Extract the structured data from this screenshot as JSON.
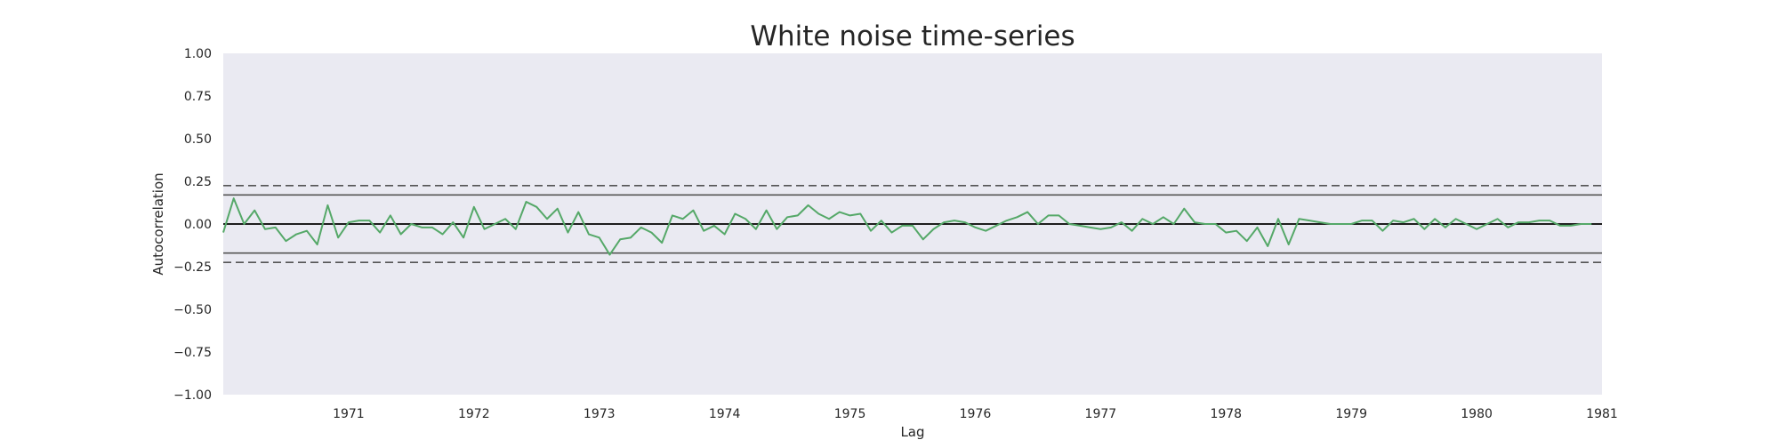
{
  "chart_data": {
    "type": "line",
    "title": "White noise time-series",
    "xlabel": "Lag",
    "ylabel": "Autocorrelation",
    "xlim": [
      1970.0,
      1981.0
    ],
    "ylim": [
      -1.0,
      1.0
    ],
    "x_ticks": [
      1971,
      1972,
      1973,
      1974,
      1975,
      1976,
      1977,
      1978,
      1979,
      1980,
      1981
    ],
    "y_ticks": [
      1.0,
      0.75,
      0.5,
      0.25,
      0.0,
      -0.25,
      -0.5,
      -0.75,
      -1.0
    ],
    "y_tick_labels": [
      "1.00",
      "0.75",
      "0.50",
      "0.25",
      "0.00",
      "−0.25",
      "−0.50",
      "−0.75",
      "−1.00"
    ],
    "grid": false,
    "reference_lines": {
      "zero": 0.0,
      "solid_bounds": [
        0.17,
        -0.17
      ],
      "dashed_bounds": [
        0.225,
        -0.225
      ]
    },
    "colors": {
      "series": "#55a868",
      "background": "#eaeaf2",
      "zero_line": "#000000",
      "bound_line": "#555555"
    },
    "series": [
      {
        "x": [
          "1970-01",
          "1970-02",
          "1970-03",
          "1970-04",
          "1970-05",
          "1970-06",
          "1970-07",
          "1970-08",
          "1970-09",
          "1970-10",
          "1970-11",
          "1970-12",
          "1971-01",
          "1971-02",
          "1971-03",
          "1971-04",
          "1971-05",
          "1971-06",
          "1971-07",
          "1971-08",
          "1971-09",
          "1971-10",
          "1971-11",
          "1971-12",
          "1972-01",
          "1972-02",
          "1972-03",
          "1972-04",
          "1972-05",
          "1972-06",
          "1972-07",
          "1972-08",
          "1972-09",
          "1972-10",
          "1972-11",
          "1972-12",
          "1973-01",
          "1973-02",
          "1973-03",
          "1973-04",
          "1973-05",
          "1973-06",
          "1973-07",
          "1973-08",
          "1973-09",
          "1973-10",
          "1973-11",
          "1973-12",
          "1974-01",
          "1974-02",
          "1974-03",
          "1974-04",
          "1974-05",
          "1974-06",
          "1974-07",
          "1974-08",
          "1974-09",
          "1974-10",
          "1974-11",
          "1974-12",
          "1975-01",
          "1975-02",
          "1975-03",
          "1975-04",
          "1975-05",
          "1975-06",
          "1975-07",
          "1975-08",
          "1975-09",
          "1975-10",
          "1975-11",
          "1975-12",
          "1976-01",
          "1976-02",
          "1976-03",
          "1976-04",
          "1976-05",
          "1976-06",
          "1976-07",
          "1976-08",
          "1976-09",
          "1976-10",
          "1976-11",
          "1976-12",
          "1977-01",
          "1977-02",
          "1977-03",
          "1977-04",
          "1977-05",
          "1977-06",
          "1977-07",
          "1977-08",
          "1977-09",
          "1977-10",
          "1977-11",
          "1977-12",
          "1978-01",
          "1978-02",
          "1978-03",
          "1978-04",
          "1978-05",
          "1978-06",
          "1978-07",
          "1978-08",
          "1978-09",
          "1978-10",
          "1978-11",
          "1978-12",
          "1979-01",
          "1979-02",
          "1979-03",
          "1979-04",
          "1979-05",
          "1979-06",
          "1979-07",
          "1979-08",
          "1979-09",
          "1979-10",
          "1979-11",
          "1979-12",
          "1980-01",
          "1980-02",
          "1980-03",
          "1980-04",
          "1980-05",
          "1980-06",
          "1980-07",
          "1980-08",
          "1980-09",
          "1980-10",
          "1980-11",
          "1980-12"
        ],
        "values": [
          -0.05,
          0.15,
          0.0,
          0.08,
          -0.03,
          -0.02,
          -0.1,
          -0.06,
          -0.04,
          -0.12,
          0.11,
          -0.08,
          0.01,
          0.02,
          0.02,
          -0.05,
          0.05,
          -0.06,
          0.0,
          -0.02,
          -0.02,
          -0.06,
          0.01,
          -0.08,
          0.1,
          -0.03,
          0.0,
          0.03,
          -0.03,
          0.13,
          0.1,
          0.03,
          0.09,
          -0.05,
          0.07,
          -0.06,
          -0.08,
          -0.18,
          -0.09,
          -0.08,
          -0.02,
          -0.05,
          -0.11,
          0.05,
          0.03,
          0.08,
          -0.04,
          -0.01,
          -0.06,
          0.06,
          0.03,
          -0.03,
          0.08,
          -0.03,
          0.04,
          0.05,
          0.11,
          0.06,
          0.03,
          0.07,
          0.05,
          0.06,
          -0.04,
          0.02,
          -0.05,
          -0.01,
          -0.01,
          -0.09,
          -0.03,
          0.01,
          0.02,
          0.01,
          -0.02,
          -0.04,
          -0.01,
          0.02,
          0.04,
          0.07,
          0.0,
          0.05,
          0.05,
          0.0,
          -0.01,
          -0.02,
          -0.03,
          -0.02,
          0.01,
          -0.04,
          0.03,
          0.0,
          0.04,
          0.0,
          0.09,
          0.01,
          0.0,
          0.0,
          -0.05,
          -0.04,
          -0.1,
          -0.02,
          -0.13,
          0.03,
          -0.12,
          0.03,
          0.02,
          0.01,
          0.0,
          0.0,
          0.0,
          0.02,
          0.02,
          -0.04,
          0.02,
          0.01,
          0.03,
          -0.03,
          0.03,
          -0.02,
          0.03,
          0.0,
          -0.03,
          0.0,
          0.03,
          -0.02,
          0.01,
          0.01,
          0.02,
          0.02,
          -0.01,
          -0.01,
          0.0,
          0.0
        ]
      }
    ]
  }
}
